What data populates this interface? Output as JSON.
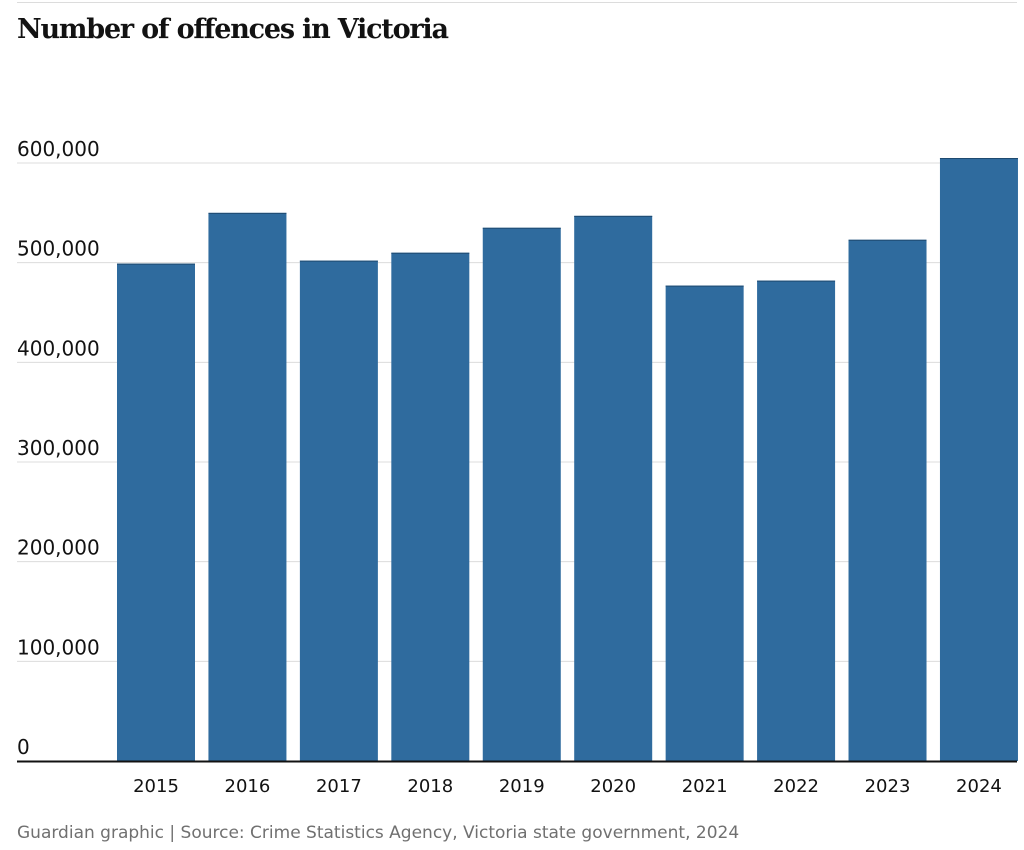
{
  "chart_data": {
    "type": "bar",
    "title": "Number of offences in Victoria",
    "xlabel": "",
    "ylabel": "",
    "categories": [
      "2015",
      "2016",
      "2017",
      "2018",
      "2019",
      "2020",
      "2021",
      "2022",
      "2023",
      "2024"
    ],
    "values": [
      499000,
      550000,
      502000,
      510000,
      535000,
      547000,
      477000,
      482000,
      523000,
      605000
    ],
    "ylim": [
      0,
      600000
    ],
    "yticks": [
      0,
      100000,
      200000,
      300000,
      400000,
      500000,
      600000
    ],
    "ytick_labels": [
      "0",
      "100,000",
      "200,000",
      "300,000",
      "400,000",
      "500,000",
      "600,000"
    ],
    "grid": true,
    "legend": "none",
    "bar_color": "#2f6b9e",
    "gridline_color": "#dcdcdc",
    "baseline_color": "#121212"
  },
  "footer": {
    "source": "Guardian graphic | Source: Crime Statistics Agency, Victoria state government, 2024"
  }
}
